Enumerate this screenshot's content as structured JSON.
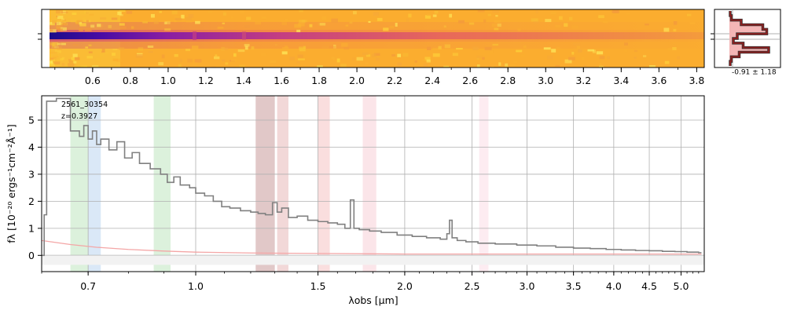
{
  "chart_data": [
    {
      "type": "heatmap",
      "description_role": "2D spectrum image",
      "colormap": "plasma",
      "x_ticks_major": [
        "0.6",
        "0.8",
        "1.0",
        "1.2",
        "1.4",
        "1.6",
        "1.8",
        "2.0",
        "2.2",
        "2.4",
        "2.6",
        "2.8",
        "3.0",
        "3.2",
        "3.4",
        "3.6",
        "3.8"
      ],
      "x_tick_values": [
        0.6,
        0.8,
        1.0,
        1.2,
        1.4,
        1.6,
        1.8,
        2.0,
        2.2,
        2.4,
        2.6,
        2.8,
        3.0,
        3.2,
        3.4,
        3.6,
        3.8
      ],
      "xlim": [
        0.33,
        3.84
      ],
      "trace_center_row": 0.5
    },
    {
      "type": "line",
      "description_role": "spatial profile",
      "annotation": "-0.91 ± 1.18",
      "profile": [
        0.02,
        0.05,
        0.3,
        0.85,
        0.95,
        0.2,
        0.1,
        0.35,
        1.0,
        0.25,
        0.05,
        0.02
      ],
      "colors": {
        "line": "#5c1a1a",
        "fill": "#f4b6b6",
        "outline": "#333333"
      }
    },
    {
      "type": "line",
      "description_role": "1D spectrum",
      "xlabel": "λobs [μm]",
      "ylabel": "fλ [10⁻²⁰ ergs⁻¹cm⁻²Å⁻¹]",
      "annotation_id": "2561_30354",
      "annotation_z": "z=0.3927",
      "xlim": [
        0.6,
        5.4
      ],
      "ylim": [
        -0.6,
        5.9
      ],
      "x_ticks": [
        "0.7",
        "1.0",
        "1.5",
        "2.0",
        "2.5",
        "3.0",
        "3.5",
        "4.0",
        "4.5",
        "5.0"
      ],
      "x_tick_values": [
        0.7,
        1.0,
        1.5,
        2.0,
        2.5,
        3.0,
        3.5,
        4.0,
        4.5,
        5.0
      ],
      "y_ticks": [
        "0",
        "1",
        "2",
        "3",
        "4",
        "5"
      ],
      "y_tick_values": [
        0,
        1,
        2,
        3,
        4,
        5
      ],
      "grid": true,
      "series": [
        {
          "color": "#808080",
          "x": [
            0.6,
            0.605,
            0.61,
            0.63,
            0.66,
            0.68,
            0.69,
            0.7,
            0.71,
            0.72,
            0.73,
            0.75,
            0.77,
            0.79,
            0.81,
            0.83,
            0.86,
            0.89,
            0.91,
            0.93,
            0.95,
            0.98,
            1.0,
            1.03,
            1.06,
            1.09,
            1.12,
            1.16,
            1.2,
            1.23,
            1.26,
            1.29,
            1.31,
            1.33,
            1.36,
            1.4,
            1.45,
            1.5,
            1.55,
            1.6,
            1.64,
            1.67,
            1.69,
            1.72,
            1.78,
            1.85,
            1.95,
            2.05,
            2.15,
            2.25,
            2.3,
            2.32,
            2.34,
            2.38,
            2.45,
            2.55,
            2.7,
            2.9,
            3.1,
            3.3,
            3.5,
            3.7,
            3.9,
            4.1,
            4.3,
            4.5,
            4.7,
            4.9,
            5.1,
            5.3,
            5.35
          ],
          "y": [
            0.0,
            1.5,
            5.7,
            5.8,
            4.6,
            4.4,
            4.8,
            4.3,
            4.6,
            4.1,
            4.3,
            3.9,
            4.2,
            3.6,
            3.8,
            3.4,
            3.2,
            3.0,
            2.7,
            2.9,
            2.6,
            2.5,
            2.3,
            2.2,
            2.0,
            1.8,
            1.75,
            1.65,
            1.6,
            1.55,
            1.5,
            1.95,
            1.6,
            1.75,
            1.4,
            1.45,
            1.3,
            1.25,
            1.2,
            1.15,
            1.0,
            2.05,
            1.0,
            0.95,
            0.9,
            0.85,
            0.75,
            0.7,
            0.65,
            0.6,
            0.8,
            1.3,
            0.65,
            0.55,
            0.5,
            0.45,
            0.42,
            0.38,
            0.35,
            0.3,
            0.27,
            0.25,
            0.22,
            0.2,
            0.18,
            0.17,
            0.15,
            0.14,
            0.12,
            0.1,
            0.1
          ]
        },
        {
          "color": "#f4a6a6",
          "x": [
            0.6,
            0.62,
            0.66,
            0.72,
            0.8,
            0.9,
            1.0,
            1.2,
            1.5,
            2.0,
            2.5,
            3.0,
            4.0,
            5.0,
            5.35
          ],
          "y": [
            0.55,
            0.5,
            0.4,
            0.3,
            0.22,
            0.16,
            0.12,
            0.09,
            0.07,
            0.05,
            0.05,
            0.05,
            0.05,
            0.05,
            0.05
          ]
        }
      ],
      "bands": [
        {
          "x0": 0.66,
          "x1": 0.7,
          "color": "#bfe5bf"
        },
        {
          "x0": 0.7,
          "x1": 0.73,
          "color": "#bcd6f0"
        },
        {
          "x0": 0.87,
          "x1": 0.92,
          "color": "#bfe5bf"
        },
        {
          "x0": 1.22,
          "x1": 1.3,
          "color": "#c99a9a"
        },
        {
          "x0": 1.31,
          "x1": 1.36,
          "color": "#e8b8b8"
        },
        {
          "x0": 1.5,
          "x1": 1.56,
          "color": "#f6c3c3"
        },
        {
          "x0": 1.74,
          "x1": 1.82,
          "color": "#f8cfd7"
        },
        {
          "x0": 2.56,
          "x1": 2.64,
          "color": "#fbdde6"
        }
      ]
    }
  ]
}
